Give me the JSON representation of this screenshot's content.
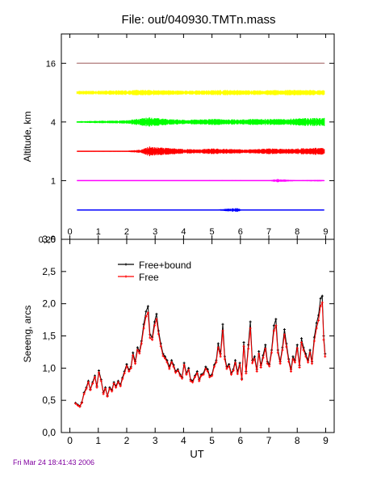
{
  "header": {
    "title": "File: out/040930.TMTn.mass"
  },
  "footer": {
    "timestamp": "Fri Mar 24 18:41:43 2006"
  },
  "colors": {
    "layer_16": "#bc8f8f",
    "layer_8": "#ffff00",
    "layer_4": "#00ff00",
    "layer_2": "#ff0000",
    "layer_1": "#ff00ff",
    "layer_05": "#0000ff",
    "free_bound": "#000000",
    "free": "#ff0000"
  },
  "chart_data": [
    {
      "type": "line",
      "ylabel": "Altitude, km",
      "xlim": [
        -0.3,
        9.3
      ],
      "ylim": [
        0.25,
        32
      ],
      "y_scale": "log",
      "xticks": [
        "0",
        "1",
        "2",
        "3",
        "4",
        "5",
        "6",
        "7",
        "8",
        "9"
      ],
      "yticks": [
        "0,25",
        "1",
        "4",
        "16"
      ],
      "series": [
        {
          "altitude": 16,
          "color_key": "layer_16",
          "x": [
            0.25,
            1,
            2,
            3,
            4,
            5,
            6,
            7,
            8,
            8.95
          ],
          "amplitude": [
            0.6,
            0.6,
            0.6,
            0.7,
            0.6,
            0.7,
            0.7,
            0.6,
            0.7,
            0.6
          ]
        },
        {
          "altitude": 8,
          "color_key": "layer_8",
          "x": [
            0.25,
            1,
            2,
            2.5,
            3,
            3.5,
            4,
            5,
            5.5,
            6,
            7,
            8,
            8.95
          ],
          "amplitude": [
            2.2,
            2.5,
            3.0,
            3.5,
            3.2,
            3.0,
            2.5,
            3.0,
            3.5,
            3.0,
            3.0,
            3.5,
            3.0
          ]
        },
        {
          "altitude": 4,
          "color_key": "layer_4",
          "x": [
            0.25,
            1,
            2,
            2.6,
            2.8,
            3,
            3.5,
            4,
            4.5,
            5,
            5.5,
            6,
            6.5,
            7,
            7.5,
            8,
            8.5,
            8.95
          ],
          "amplitude": [
            1.0,
            1.5,
            2.0,
            5.0,
            6.0,
            5.0,
            3.5,
            3.0,
            3.0,
            4.0,
            3.5,
            3.0,
            4.0,
            4.0,
            3.5,
            4.5,
            5.0,
            5.0
          ]
        },
        {
          "altitude": 2,
          "color_key": "layer_2",
          "x": [
            0.25,
            1,
            2,
            2.5,
            2.8,
            3,
            3.5,
            4,
            4.5,
            5,
            5.5,
            6,
            6.5,
            7,
            7.5,
            8,
            8.5,
            8.95
          ],
          "amplitude": [
            0.5,
            0.5,
            0.6,
            2.0,
            6.0,
            5.0,
            4.0,
            3.0,
            2.5,
            3.5,
            3.0,
            2.5,
            2.5,
            3.5,
            3.0,
            3.5,
            4.5,
            4.0
          ]
        },
        {
          "altitude": 1,
          "color_key": "layer_1",
          "x": [
            0.25,
            1,
            2,
            2.8,
            3,
            4,
            5,
            6,
            7,
            7.3,
            8,
            8.8,
            8.95
          ],
          "amplitude": [
            0.2,
            0.2,
            0.2,
            0.5,
            0.3,
            0.3,
            0.5,
            0.5,
            0.4,
            2.0,
            0.4,
            1.0,
            0.4
          ]
        },
        {
          "altitude": 0.5,
          "color_key": "layer_05",
          "x": [
            0.25,
            1,
            2,
            3,
            4,
            5,
            5.9,
            6,
            6.1,
            7,
            8,
            8.95
          ],
          "amplitude": [
            0.1,
            0.2,
            0.1,
            0.3,
            0.2,
            0.2,
            2.5,
            1.0,
            0.5,
            0.2,
            0.2,
            0.1
          ]
        }
      ]
    },
    {
      "type": "line",
      "xlabel": "UT",
      "ylabel": "Seeeng, arcs",
      "xlim": [
        -0.3,
        9.3
      ],
      "ylim": [
        0.0,
        3.0
      ],
      "xticks": [
        "0",
        "1",
        "2",
        "3",
        "4",
        "5",
        "6",
        "7",
        "8",
        "9"
      ],
      "yticks": [
        "0,0",
        "0,5",
        "1,0",
        "1,5",
        "2,0",
        "2,5",
        "3,0"
      ],
      "legend": {
        "placement": "top-left",
        "entries": [
          "Free+bound",
          "Free"
        ]
      },
      "x": [
        0.2,
        0.28,
        0.35,
        0.42,
        0.5,
        0.58,
        0.65,
        0.72,
        0.8,
        0.88,
        0.95,
        1.02,
        1.1,
        1.18,
        1.25,
        1.32,
        1.4,
        1.48,
        1.55,
        1.62,
        1.7,
        1.78,
        1.85,
        1.92,
        2.0,
        2.08,
        2.15,
        2.22,
        2.3,
        2.38,
        2.45,
        2.52,
        2.6,
        2.68,
        2.75,
        2.82,
        2.9,
        2.98,
        3.05,
        3.12,
        3.2,
        3.28,
        3.35,
        3.42,
        3.5,
        3.58,
        3.65,
        3.72,
        3.8,
        3.88,
        3.95,
        4.02,
        4.1,
        4.18,
        4.25,
        4.32,
        4.4,
        4.48,
        4.55,
        4.62,
        4.7,
        4.78,
        4.85,
        4.92,
        5.0,
        5.08,
        5.15,
        5.22,
        5.3,
        5.38,
        5.45,
        5.52,
        5.6,
        5.68,
        5.75,
        5.82,
        5.9,
        5.98,
        6.05,
        6.12,
        6.2,
        6.28,
        6.35,
        6.42,
        6.5,
        6.58,
        6.65,
        6.72,
        6.8,
        6.88,
        6.95,
        7.02,
        7.1,
        7.18,
        7.25,
        7.32,
        7.4,
        7.48,
        7.55,
        7.62,
        7.7,
        7.78,
        7.85,
        7.92,
        8.0,
        8.08,
        8.15,
        8.22,
        8.3,
        8.38,
        8.45,
        8.52,
        8.6,
        8.68,
        8.75,
        8.82,
        8.88,
        8.93,
        8.98
      ],
      "series": [
        {
          "name": "Free+bound",
          "color_key": "free_bound",
          "values": [
            0.46,
            0.43,
            0.41,
            0.47,
            0.62,
            0.7,
            0.8,
            0.67,
            0.78,
            0.88,
            0.72,
            0.96,
            0.82,
            0.62,
            0.7,
            0.57,
            0.7,
            0.66,
            0.78,
            0.72,
            0.8,
            0.74,
            0.85,
            0.95,
            1.06,
            0.97,
            1.02,
            1.24,
            1.1,
            1.32,
            1.26,
            1.42,
            1.68,
            1.88,
            1.96,
            1.52,
            1.48,
            1.72,
            1.84,
            1.58,
            1.38,
            1.22,
            1.18,
            1.12,
            1.02,
            1.12,
            1.05,
            0.95,
            0.98,
            0.9,
            0.86,
            1.08,
            0.92,
            1.0,
            0.82,
            0.8,
            0.88,
            0.95,
            0.82,
            0.9,
            0.92,
            1.02,
            0.98,
            0.88,
            0.9,
            1.05,
            1.12,
            1.38,
            1.22,
            1.68,
            1.18,
            1.02,
            1.06,
            0.92,
            0.98,
            1.12,
            0.94,
            1.08,
            0.84,
            1.4,
            0.95,
            1.36,
            1.72,
            1.12,
            1.18,
            0.98,
            1.26,
            1.04,
            1.2,
            1.36,
            1.1,
            1.06,
            1.28,
            1.66,
            1.76,
            1.28,
            1.1,
            1.32,
            1.6,
            1.38,
            1.14,
            0.98,
            1.18,
            1.12,
            1.36,
            1.04,
            1.46,
            1.32,
            1.22,
            1.12,
            1.28,
            1.1,
            1.48,
            1.7,
            1.82,
            2.08,
            2.12,
            1.5,
            1.22
          ]
        },
        {
          "name": "Free",
          "color_key": "free",
          "values": [
            0.45,
            0.42,
            0.4,
            0.46,
            0.6,
            0.68,
            0.78,
            0.66,
            0.76,
            0.86,
            0.7,
            0.93,
            0.8,
            0.6,
            0.68,
            0.56,
            0.68,
            0.64,
            0.76,
            0.7,
            0.78,
            0.72,
            0.83,
            0.92,
            1.03,
            0.95,
            1.0,
            1.2,
            1.07,
            1.28,
            1.23,
            1.38,
            1.62,
            1.8,
            1.86,
            1.47,
            1.44,
            1.66,
            1.76,
            1.53,
            1.34,
            1.19,
            1.15,
            1.09,
            0.99,
            1.09,
            1.02,
            0.93,
            0.96,
            0.88,
            0.84,
            1.05,
            0.9,
            0.97,
            0.8,
            0.78,
            0.86,
            0.92,
            0.8,
            0.88,
            0.9,
            0.99,
            0.95,
            0.86,
            0.88,
            1.02,
            1.09,
            1.32,
            1.18,
            1.58,
            1.14,
            0.99,
            1.03,
            0.9,
            0.96,
            1.08,
            0.91,
            1.05,
            0.82,
            1.34,
            0.92,
            1.3,
            1.62,
            1.08,
            1.14,
            0.95,
            1.22,
            1.01,
            1.16,
            1.3,
            1.07,
            1.03,
            1.24,
            1.58,
            1.66,
            1.24,
            1.07,
            1.28,
            1.52,
            1.33,
            1.1,
            0.95,
            1.14,
            1.09,
            1.31,
            1.01,
            1.4,
            1.28,
            1.18,
            1.09,
            1.24,
            1.07,
            1.42,
            1.62,
            1.74,
            1.96,
            2.02,
            1.44,
            1.18
          ]
        }
      ]
    }
  ]
}
